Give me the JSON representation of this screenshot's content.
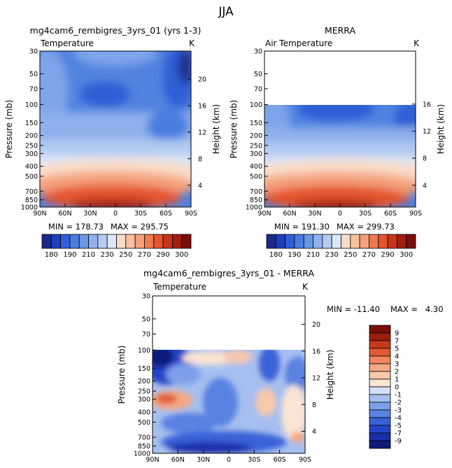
{
  "page": {
    "title": "JJA"
  },
  "chart_data": [
    {
      "type": "heatmap",
      "title": "mg4cam6_rembigres_3yrs_01 (yrs 1-3)",
      "subtitle": "Temperature",
      "units": "K",
      "xlabel": "",
      "ylabel": "Pressure (mb)",
      "y2label": "Height (km)",
      "x_ticks": [
        "90N",
        "60N",
        "30N",
        "0",
        "30S",
        "60S",
        "90S"
      ],
      "y_ticks": [
        "30",
        "50",
        "70",
        "100",
        "150",
        "200",
        "250",
        "300",
        "400",
        "500",
        "700",
        "850",
        "1000"
      ],
      "y2_ticks": [
        "20",
        "16",
        "12",
        "8",
        "4"
      ],
      "y_scale": "log",
      "ylim": [
        1000,
        30
      ],
      "xlim": [
        "90N",
        "90S"
      ],
      "data_top_pressure": 30,
      "stats": {
        "min": "MIN = 178.73",
        "max": "MAX = 295.75"
      },
      "colorbar_ticks": [
        "180",
        "190",
        "210",
        "230",
        "250",
        "270",
        "290",
        "300"
      ],
      "color_levels": [
        175,
        180,
        185,
        190,
        200,
        210,
        220,
        230,
        240,
        250,
        260,
        270,
        280,
        290,
        295,
        300
      ],
      "colors": [
        "#1a2a8a",
        "#1f3fbf",
        "#2e5fd6",
        "#4a7de0",
        "#6a97e6",
        "#8fb0ec",
        "#b3cbf2",
        "#dde6f6",
        "#f9dcc8",
        "#f8c0a0",
        "#f5a07a",
        "#ef7a52",
        "#e3552e",
        "#c83418",
        "#a01e0e",
        "#7a0e08"
      ]
    },
    {
      "type": "heatmap",
      "title": "MERRA",
      "subtitle": "Air Temperature",
      "units": "K",
      "xlabel": "",
      "ylabel": "Pressure (mb)",
      "y2label": "Height (km)",
      "x_ticks": [
        "90N",
        "60N",
        "30N",
        "0",
        "30S",
        "60S",
        "90S"
      ],
      "y_ticks": [
        "30",
        "50",
        "70",
        "100",
        "150",
        "200",
        "250",
        "300",
        "400",
        "500",
        "700",
        "850",
        "1000"
      ],
      "y2_ticks": [
        "16",
        "12",
        "8",
        "4"
      ],
      "y_scale": "log",
      "ylim": [
        1000,
        30
      ],
      "data_top_pressure": 100,
      "stats": {
        "min": "MIN = 191.30",
        "max": "MAX = 299.73"
      },
      "colorbar_ticks": [
        "180",
        "190",
        "210",
        "230",
        "250",
        "270",
        "290",
        "300"
      ]
    },
    {
      "type": "heatmap",
      "title": "mg4cam6_rembigres_3yrs_01 - MERRA",
      "subtitle": "Temperature",
      "units": "K",
      "xlabel": "",
      "ylabel": "Pressure (mb)",
      "y2label": "Height (km)",
      "x_ticks": [
        "90N",
        "60N",
        "30N",
        "0",
        "30S",
        "60S",
        "90S"
      ],
      "y_ticks": [
        "30",
        "50",
        "70",
        "100",
        "150",
        "200",
        "250",
        "300",
        "400",
        "500",
        "700",
        "850",
        "1000"
      ],
      "y2_ticks": [
        "20",
        "16",
        "12",
        "8",
        "4"
      ],
      "y_scale": "log",
      "ylim": [
        1000,
        30
      ],
      "data_top_pressure": 100,
      "stats": {
        "min": "MIN = -11.40",
        "max": "MAX =   4.30"
      },
      "colorbar_ticks": [
        "9",
        "7",
        "5",
        "4",
        "3",
        "2",
        "1",
        "0",
        "-1",
        "-2",
        "-3",
        "-4",
        "-5",
        "-7",
        "-9"
      ],
      "color_levels": [
        -11,
        -9,
        -7,
        -5,
        -4,
        -3,
        -2,
        -1,
        0,
        1,
        2,
        3,
        4,
        5,
        7,
        9
      ],
      "colors": [
        "#0d1a7a",
        "#1a2fa8",
        "#2444c8",
        "#3a62d8",
        "#5a82e2",
        "#7ea0ea",
        "#a6bff0",
        "#d4e0f6",
        "#fbe4d4",
        "#f8c8ac",
        "#f5a884",
        "#ef845e",
        "#e05a34",
        "#c8381a",
        "#9c1c0c",
        "#7a0e08"
      ]
    }
  ]
}
